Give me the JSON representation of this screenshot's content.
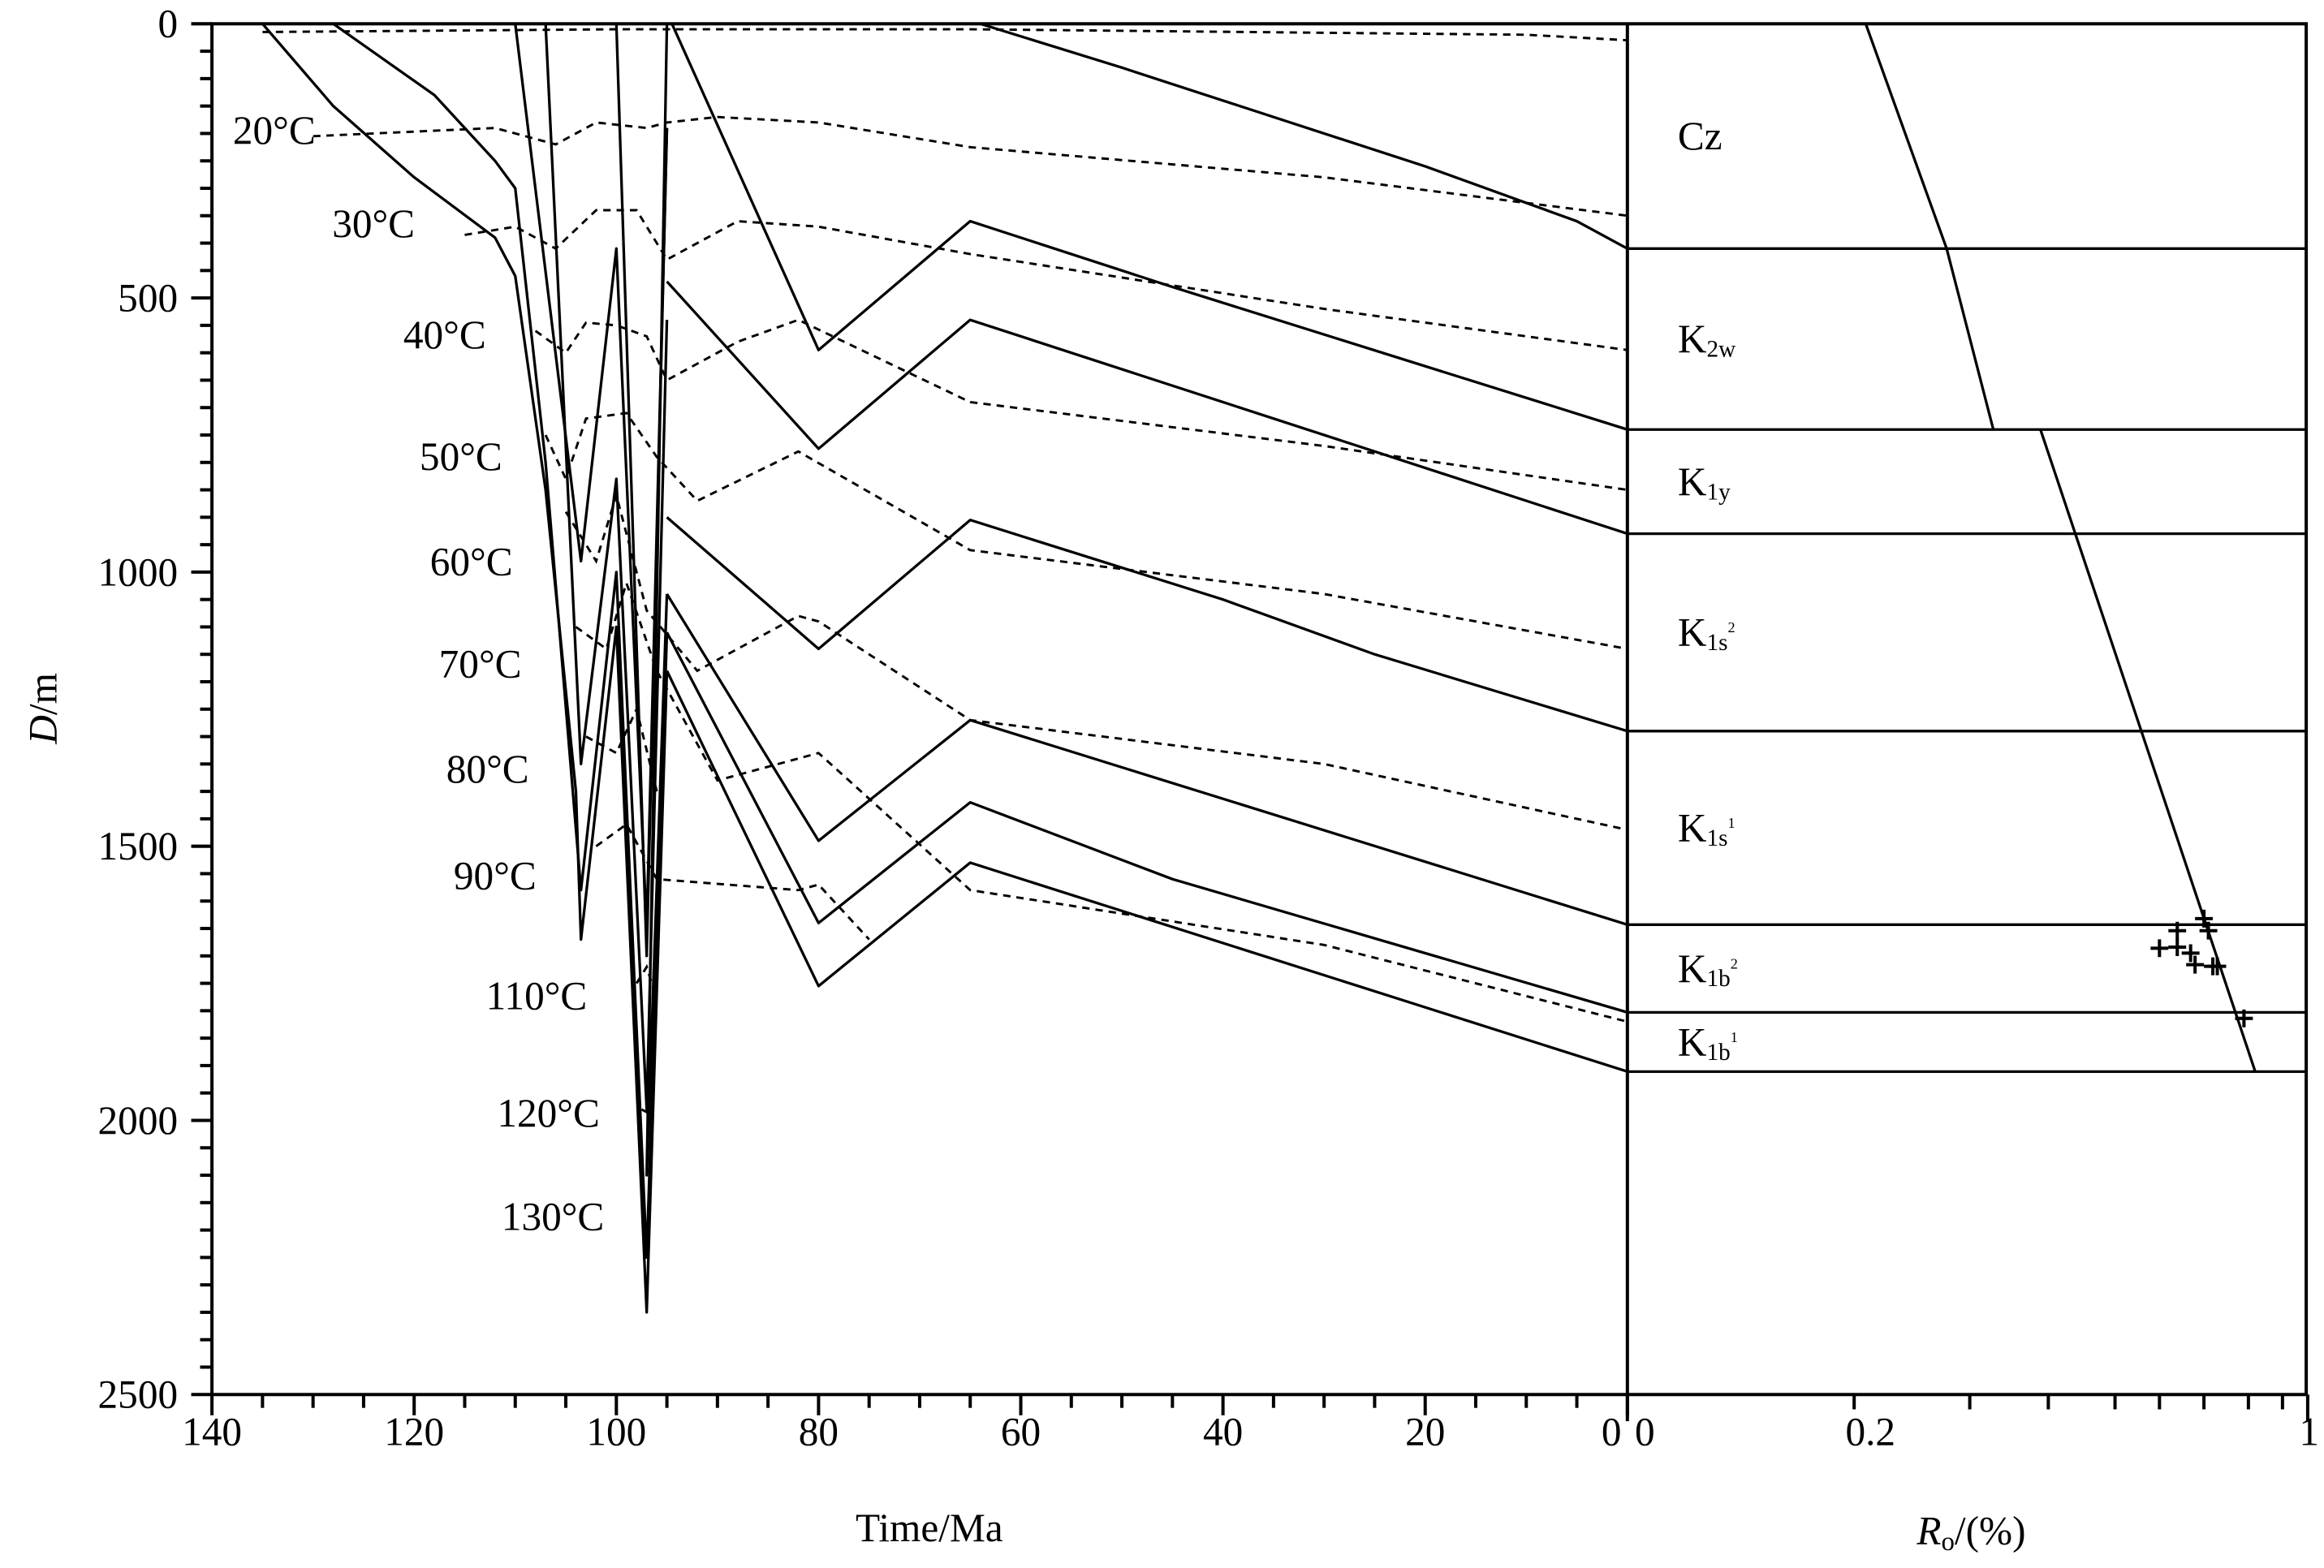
{
  "chart_data": {
    "type": "line",
    "left_panel": {
      "title": "",
      "xlabel": "Time/Ma",
      "ylabel_italic": "D",
      "ylabel_rest": "/m",
      "xlim": [
        140,
        0
      ],
      "ylim": [
        0,
        2500
      ],
      "xticks": [
        140,
        120,
        100,
        80,
        60,
        40,
        20,
        0
      ],
      "yticks": [
        0,
        500,
        1000,
        1500,
        2000,
        2500
      ],
      "burial_curves": [
        {
          "name": "Cz top",
          "points": [
            [
              64,
              0
            ],
            [
              50,
              80
            ],
            [
              40,
              140
            ],
            [
              20,
              260
            ],
            [
              5,
              360
            ],
            [
              0,
              410
            ]
          ]
        },
        {
          "name": "curve-2",
          "points": [
            [
              94.5,
              0
            ],
            [
              80,
              595
            ],
            [
              65,
              360
            ],
            [
              45,
              480
            ],
            [
              0,
              740
            ]
          ]
        },
        {
          "name": "curve-3",
          "points": [
            [
              95,
              470
            ],
            [
              80,
              775
            ],
            [
              65,
              540
            ],
            [
              40,
              690
            ],
            [
              0,
              930
            ]
          ]
        },
        {
          "name": "curve-4",
          "points": [
            [
              95,
              900
            ],
            [
              80,
              1140
            ],
            [
              65,
              905
            ],
            [
              40,
              1050
            ],
            [
              25,
              1150
            ],
            [
              0,
              1290
            ]
          ]
        },
        {
          "name": "curve-5",
          "points": [
            [
              95,
              1040
            ],
            [
              80,
              1490
            ],
            [
              65,
              1270
            ],
            [
              0,
              1643
            ]
          ]
        },
        {
          "name": "curve-6",
          "points": [
            [
              95,
              1110
            ],
            [
              80,
              1640
            ],
            [
              65,
              1420
            ],
            [
              45,
              1560
            ],
            [
              0,
              1803
            ]
          ]
        },
        {
          "name": "curve-7",
          "points": [
            [
              95,
              1180
            ],
            [
              80,
              1755
            ],
            [
              65,
              1530
            ],
            [
              0,
              1911
            ]
          ]
        },
        {
          "name": "early-A",
          "points": [
            [
              135,
              0
            ],
            [
              128,
              150
            ],
            [
              120,
              280
            ],
            [
              112,
              390
            ],
            [
              110,
              460
            ],
            [
              107,
              850
            ],
            [
              104,
              1400
            ],
            [
              103.5,
              1670
            ],
            [
              100,
              1100
            ],
            [
              97,
              2350
            ],
            [
              95,
              1180
            ]
          ]
        },
        {
          "name": "early-B",
          "points": [
            [
              128,
              0
            ],
            [
              118,
              130
            ],
            [
              112,
              250
            ],
            [
              110,
              300
            ],
            [
              107,
              800
            ],
            [
              103.5,
              1580
            ],
            [
              100,
              1000
            ],
            [
              97,
              2250
            ],
            [
              95,
              1110
            ]
          ]
        },
        {
          "name": "early-C",
          "points": [
            [
              110,
              0
            ],
            [
              103.5,
              980
            ],
            [
              100,
              410
            ],
            [
              97,
              1650
            ],
            [
              95,
              190
            ]
          ]
        },
        {
          "name": "early-D",
          "points": [
            [
              107,
              0
            ],
            [
              103.5,
              1350
            ],
            [
              100,
              830
            ],
            [
              97,
              1980
            ],
            [
              95,
              540
            ]
          ]
        },
        {
          "name": "early-E",
          "points": [
            [
              100,
              0
            ],
            [
              97,
              1700
            ],
            [
              95,
              190
            ]
          ]
        },
        {
          "name": "early-F",
          "points": [
            [
              95,
              0
            ],
            [
              97,
              2100
            ],
            [
              95,
              1040
            ]
          ]
        }
      ],
      "isotherms": [
        {
          "label": "",
          "points": [
            [
              135,
              15
            ],
            [
              100,
              10
            ],
            [
              65,
              10
            ],
            [
              10,
              20
            ],
            [
              0,
              30
            ]
          ]
        },
        {
          "label": "20°C",
          "points": [
            [
              130,
              205
            ],
            [
              112,
              190
            ],
            [
              106,
              220
            ],
            [
              102,
              180
            ],
            [
              97,
              190
            ],
            [
              95,
              180
            ],
            [
              90,
              170
            ],
            [
              80,
              180
            ],
            [
              65,
              225
            ],
            [
              30,
              280
            ],
            [
              0,
              350
            ]
          ]
        },
        {
          "label": "30°C",
          "points": [
            [
              115,
              385
            ],
            [
              110,
              370
            ],
            [
              106,
              410
            ],
            [
              102,
              340
            ],
            [
              98,
              340
            ],
            [
              95,
              430
            ],
            [
              88,
              360
            ],
            [
              80,
              370
            ],
            [
              65,
              420
            ],
            [
              30,
              520
            ],
            [
              0,
              595
            ]
          ]
        },
        {
          "label": "40°C",
          "points": [
            [
              108,
              560
            ],
            [
              105,
              600
            ],
            [
              103,
              545
            ],
            [
              100,
              550
            ],
            [
              97,
              570
            ],
            [
              95,
              650
            ],
            [
              88,
              580
            ],
            [
              82,
              540
            ],
            [
              65,
              690
            ],
            [
              30,
              770
            ],
            [
              0,
              850
            ]
          ]
        },
        {
          "label": "50°C",
          "points": [
            [
              107,
              750
            ],
            [
              105,
              830
            ],
            [
              103,
              720
            ],
            [
              99,
              710
            ],
            [
              96,
              790
            ],
            [
              92,
              870
            ],
            [
              82,
              780
            ],
            [
              65,
              960
            ],
            [
              30,
              1040
            ],
            [
              0,
              1140
            ]
          ]
        },
        {
          "label": "60°C",
          "points": [
            [
              105,
              890
            ],
            [
              102,
              980
            ],
            [
              100,
              860
            ],
            [
              97,
              1070
            ],
            [
              92,
              1180
            ],
            [
              82,
              1080
            ],
            [
              80,
              1090
            ],
            [
              65,
              1270
            ],
            [
              30,
              1350
            ],
            [
              0,
              1470
            ]
          ]
        },
        {
          "label": "70°C",
          "points": [
            [
              104,
              1100
            ],
            [
              101,
              1140
            ],
            [
              99,
              1020
            ],
            [
              96,
              1180
            ],
            [
              90,
              1380
            ],
            [
              80,
              1330
            ],
            [
              65,
              1580
            ],
            [
              30,
              1680
            ],
            [
              0,
              1820
            ]
          ]
        },
        {
          "label": "80°C",
          "points": [
            [
              103,
              1300
            ],
            [
              100,
              1330
            ],
            [
              98,
              1250
            ],
            [
              96,
              1400
            ]
          ]
        },
        {
          "label": "90°C",
          "points": [
            [
              102,
              1500
            ],
            [
              99,
              1460
            ],
            [
              96,
              1560
            ],
            [
              82,
              1580
            ],
            [
              80,
              1570
            ],
            [
              75,
              1670
            ]
          ]
        },
        {
          "label": "110°C",
          "points": [
            [
              98,
              1750
            ],
            [
              97,
              1720
            ],
            [
              96,
              1780
            ]
          ]
        },
        {
          "label": "120°C",
          "points": [
            [
              97.5,
              1980
            ],
            [
              96.5,
              1990
            ]
          ]
        },
        {
          "label": "130°C",
          "points": [
            [
              97.2,
              2200
            ],
            [
              96.8,
              2210
            ]
          ]
        }
      ],
      "isotherm_labels": [
        "20°C",
        "30°C",
        "40°C",
        "50°C",
        "60°C",
        "70°C",
        "80°C",
        "90°C",
        "110°C",
        "120°C",
        "130°C"
      ]
    },
    "right_panel": {
      "xlabel_italic": "R",
      "xlabel_sub": "o",
      "xlabel_rest": "/(%)",
      "xtick_labels": [
        "0",
        "0.2",
        "1"
      ],
      "xtick_values": [
        0,
        0.2,
        0.3,
        0.4,
        0.5,
        0.6,
        0.7,
        0.8,
        0.9,
        1
      ],
      "strata": [
        {
          "main": "Cz",
          "sub": "",
          "sup": "",
          "base_depth": 410
        },
        {
          "main": "K",
          "sub": "2w",
          "sup": "",
          "base_depth": 740
        },
        {
          "main": "K",
          "sub": "1y",
          "sup": "",
          "base_depth": 930
        },
        {
          "main": "K",
          "sub": "1s",
          "sup": "2",
          "base_depth": 1290
        },
        {
          "main": "K",
          "sub": "1s",
          "sup": "1",
          "base_depth": 1643
        },
        {
          "main": "K",
          "sub": "1b",
          "sup": "2",
          "base_depth": 1803
        },
        {
          "main": "K",
          "sub": "1b",
          "sup": "1",
          "base_depth": 1911
        }
      ],
      "ro_model": [
        [
          [
            0.21,
            0
          ],
          [
            0.28,
            410
          ],
          [
            0.33,
            740
          ]
        ],
        [
          [
            0.39,
            740
          ],
          [
            0.82,
            1911
          ]
        ]
      ],
      "ro_measured": [
        [
          0.7,
          1632
        ],
        [
          0.71,
          1654
        ],
        [
          0.64,
          1654
        ],
        [
          0.6,
          1686
        ],
        [
          0.64,
          1684
        ],
        [
          0.67,
          1695
        ],
        [
          0.68,
          1716
        ],
        [
          0.72,
          1719
        ],
        [
          0.73,
          1719
        ],
        [
          0.79,
          1814
        ]
      ]
    }
  }
}
